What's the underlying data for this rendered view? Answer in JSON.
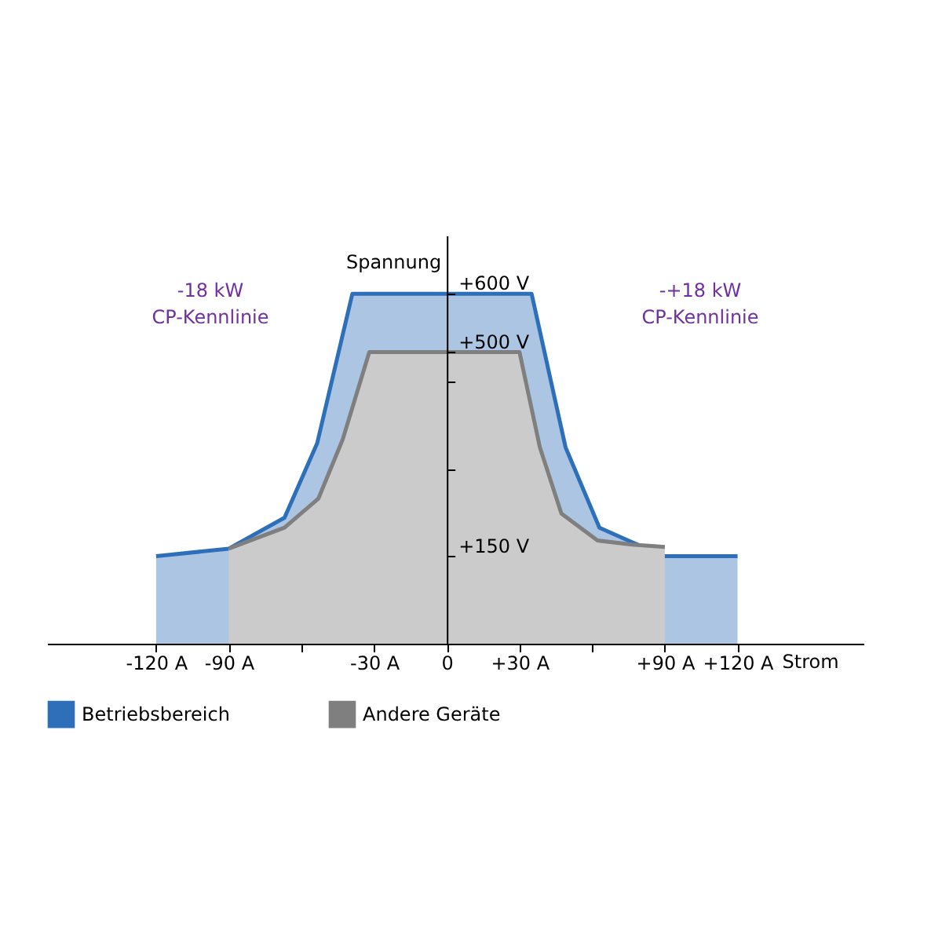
{
  "chart_data": {
    "type": "area",
    "xlabel": "Strom",
    "ylabel": "Spannung",
    "series": [
      {
        "name": "Betriebsbereich",
        "color": "#2e6fba",
        "x": [
          -120,
          -90,
          -67,
          -53.5,
          -39,
          35,
          49,
          63,
          76.5,
          90,
          120
        ],
        "values": [
          150,
          163,
          216,
          344,
          600,
          600,
          337,
          199,
          174,
          150,
          150
        ]
      },
      {
        "name": "Andere Geräte",
        "color": "#7f7f7f",
        "x": [
          -90,
          -67,
          -53,
          -43,
          -32,
          30,
          38.4,
          47.3,
          62.2,
          76.5,
          90
        ],
        "values": [
          163,
          199,
          249,
          350,
          500,
          500,
          337,
          223,
          177,
          170,
          166
        ]
      }
    ],
    "xlim": [
      -165,
      172
    ],
    "ylim": [
      0,
      700
    ],
    "xticks": [
      {
        "value": -120,
        "label": "-120 A"
      },
      {
        "value": -90,
        "label": "-90 A"
      },
      {
        "value": -60,
        "label": null
      },
      {
        "value": -30,
        "label": "-30 A"
      },
      0,
      {
        "value": 30,
        "label": "+30 A"
      },
      {
        "value": 60,
        "label": null
      },
      {
        "value": 90,
        "label": "+90 A"
      },
      {
        "value": 120,
        "label": "+120 A"
      }
    ],
    "yticks": [
      {
        "value": 150,
        "label": "+150 V"
      },
      {
        "value": 300,
        "label": null
      },
      {
        "value": 450,
        "label": null
      },
      {
        "value": 500,
        "label": "+500 V"
      },
      {
        "value": 600,
        "label": "+600 V"
      }
    ],
    "annotations": [
      "-18 kW\nCP-Kennlinie",
      "-+18 kW\nCP-Kennlinie"
    ],
    "legend": "bottom"
  }
}
